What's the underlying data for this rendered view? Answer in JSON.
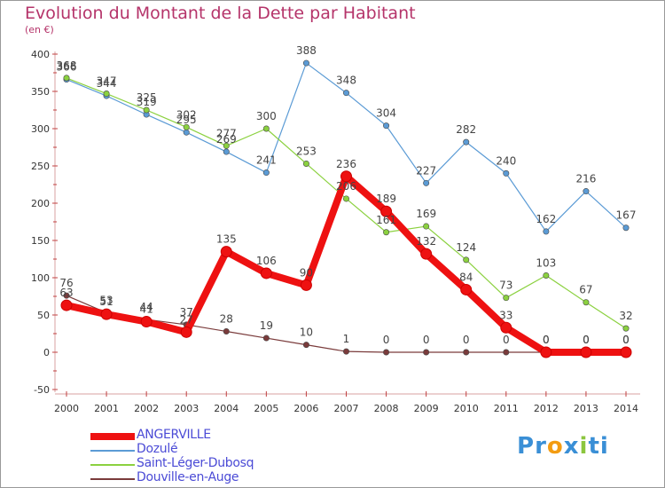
{
  "header": {
    "title": "Evolution du Montant de la Dette par Habitant",
    "unit": "(en €)"
  },
  "logo": {
    "text": "Proxiti",
    "letters": [
      "P",
      "r",
      "o",
      "x",
      "i",
      "t",
      "i"
    ],
    "colors": [
      "#3a8fd6",
      "#3a8fd6",
      "#f39c12",
      "#3a8fd6",
      "#8cc63f",
      "#3a8fd6",
      "#3a8fd6"
    ]
  },
  "chart_data": {
    "type": "line",
    "title": "Evolution du Montant de la Dette par Habitant",
    "ylabel": "(en €)",
    "xlabel": "",
    "x": [
      "2000",
      "2001",
      "2002",
      "2003",
      "2004",
      "2005",
      "2006",
      "2007",
      "2008",
      "2009",
      "2010",
      "2011",
      "2012",
      "2013",
      "2014"
    ],
    "ylim": [
      -50,
      400
    ],
    "yticks": [
      -50,
      0,
      50,
      100,
      150,
      200,
      250,
      300,
      350,
      400
    ],
    "grid": false,
    "legend_position": "bottom-left",
    "series": [
      {
        "name": "ANGERVILLE",
        "color": "#ee1111",
        "values": [
          63,
          51,
          41,
          27,
          135,
          106,
          90,
          236,
          189,
          132,
          84,
          33,
          0,
          0,
          0
        ]
      },
      {
        "name": "Dozulé",
        "color": "#5b9bd5",
        "values": [
          366,
          344,
          319,
          295,
          269,
          241,
          388,
          348,
          304,
          227,
          282,
          240,
          162,
          216,
          167
        ]
      },
      {
        "name": "Saint-Léger-Dubosq",
        "color": "#8bd13f",
        "values": [
          368,
          347,
          325,
          302,
          277,
          300,
          253,
          206,
          161,
          169,
          124,
          73,
          103,
          67,
          32
        ]
      },
      {
        "name": "Douville-en-Auge",
        "color": "#7a3b3b",
        "values": [
          76,
          53,
          44,
          37,
          28,
          19,
          10,
          1,
          0,
          0,
          0,
          0,
          0,
          0,
          0
        ]
      }
    ]
  }
}
